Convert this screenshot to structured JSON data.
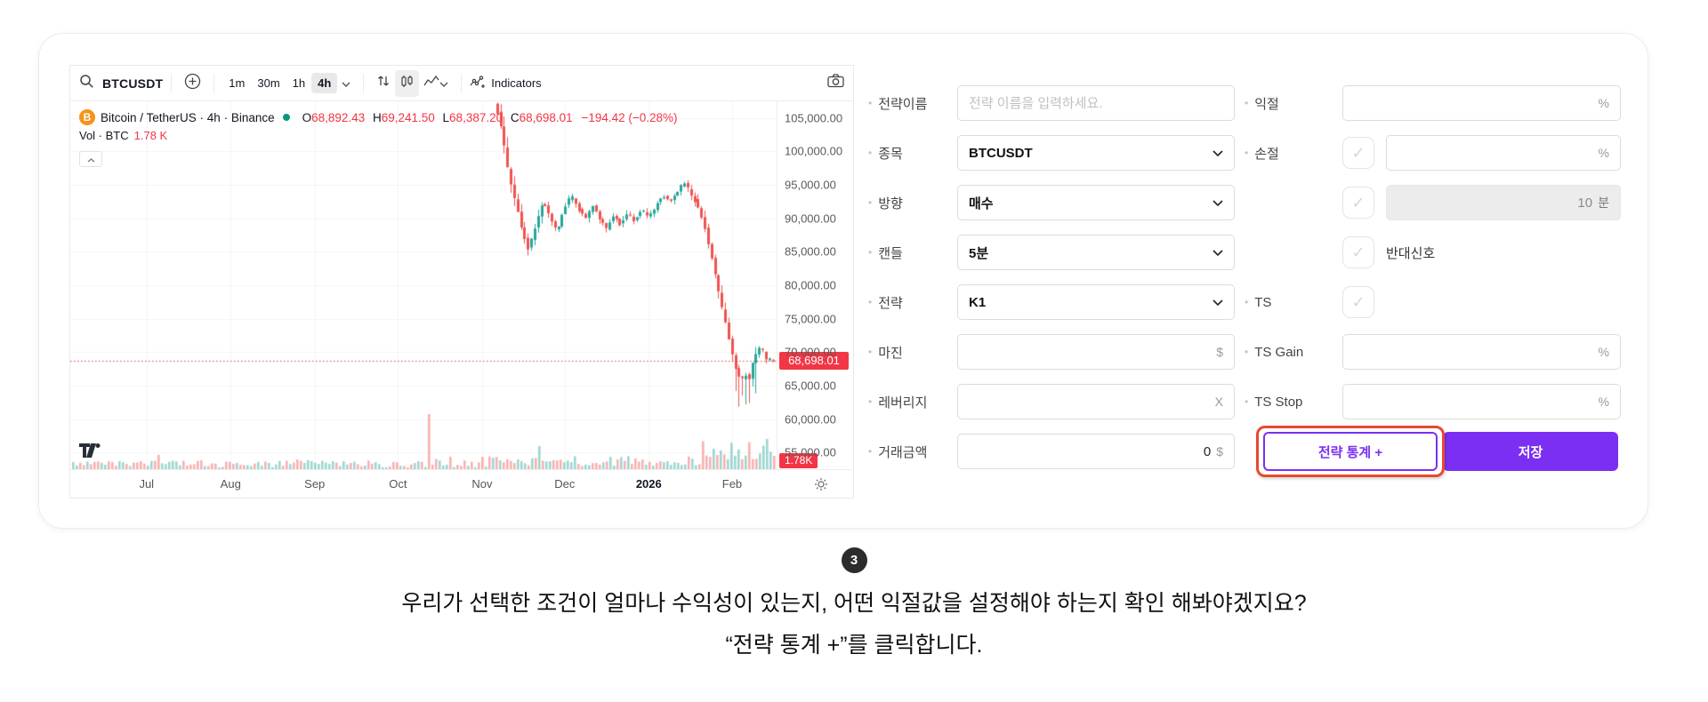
{
  "colors": {
    "accent_purple": "#7b2ff2",
    "highlight_red": "#e64a2e",
    "candle_up": "#26a69a",
    "candle_down": "#ef5350",
    "tag_red": "#f23645",
    "bitcoin_orange": "#f7931a"
  },
  "chart": {
    "toolbar": {
      "symbol": "BTCUSDT",
      "timeframes": [
        "1m",
        "30m",
        "1h",
        "4h"
      ],
      "active_timeframe": "4h",
      "indicators_label": "Indicators"
    },
    "legend": {
      "title": "Bitcoin / TetherUS · 4h · Binance",
      "ohlc": {
        "o_l": "O",
        "o": "68,892.43",
        "h_l": "H",
        "h": "69,241.50",
        "l_l": "L",
        "l": "68,387.20",
        "c_l": "C",
        "c": "68,698.01"
      },
      "change": "−194.42 (−0.28%)",
      "vol_label": "Vol · BTC",
      "vol_value": "1.78 K"
    },
    "price_axis_labels": [
      "105,000.00",
      "100,000.00",
      "95,000.00",
      "90,000.00",
      "85,000.00",
      "80,000.00",
      "75,000.00",
      "70,000.00",
      "65,000.00",
      "60,000.00",
      "55,000.00"
    ],
    "price_tag": "68,698.01",
    "volume_tag": "1.78K",
    "time_axis_labels": [
      "Jul",
      "Aug",
      "Sep",
      "Oct",
      "Nov",
      "Dec",
      "2026",
      "Feb"
    ],
    "chart_data": {
      "type": "candlestick",
      "title": "Bitcoin / TetherUS 4h Binance",
      "price_domain": [
        52500,
        107500
      ],
      "axis_prices": [
        105000,
        100000,
        95000,
        90000,
        85000,
        80000,
        75000,
        70000,
        65000,
        60000,
        55000
      ],
      "current_price": 68698.01,
      "month_fractions": [
        0.108,
        0.227,
        0.346,
        0.464,
        0.583,
        0.7,
        0.819,
        0.937
      ],
      "price_path": [
        [
          0.605,
          107000
        ],
        [
          0.615,
          102500
        ],
        [
          0.623,
          97000
        ],
        [
          0.632,
          93000
        ],
        [
          0.642,
          88500
        ],
        [
          0.652,
          85300
        ],
        [
          0.662,
          89000
        ],
        [
          0.672,
          92500
        ],
        [
          0.682,
          90500
        ],
        [
          0.692,
          88000
        ],
        [
          0.702,
          91500
        ],
        [
          0.712,
          93500
        ],
        [
          0.722,
          91500
        ],
        [
          0.732,
          90000
        ],
        [
          0.742,
          92000
        ],
        [
          0.752,
          90000
        ],
        [
          0.762,
          88500
        ],
        [
          0.772,
          90500
        ],
        [
          0.782,
          89000
        ],
        [
          0.792,
          91000
        ],
        [
          0.802,
          89500
        ],
        [
          0.812,
          91500
        ],
        [
          0.822,
          90000
        ],
        [
          0.832,
          92000
        ],
        [
          0.842,
          93500
        ],
        [
          0.852,
          92500
        ],
        [
          0.862,
          94000
        ],
        [
          0.872,
          95300
        ],
        [
          0.88,
          94000
        ],
        [
          0.888,
          92500
        ],
        [
          0.896,
          90500
        ],
        [
          0.904,
          87500
        ],
        [
          0.912,
          83500
        ],
        [
          0.92,
          79500
        ],
        [
          0.928,
          75500
        ],
        [
          0.936,
          71500
        ],
        [
          0.944,
          68000
        ],
        [
          0.952,
          65500
        ],
        [
          0.958,
          67000
        ],
        [
          0.964,
          65800
        ],
        [
          0.972,
          69500
        ],
        [
          0.98,
          71000
        ],
        [
          0.988,
          69000
        ],
        [
          1.0,
          68698
        ]
      ],
      "volume_spike_fraction": 0.505
    }
  },
  "form": {
    "left_rows": [
      {
        "label": "전략이름",
        "placeholder": "전략 이름을 입력하세요."
      },
      {
        "label": "종목",
        "value": "BTCUSDT"
      },
      {
        "label": "방향",
        "value": "매수"
      },
      {
        "label": "캔들",
        "value": "5분"
      },
      {
        "label": "전략",
        "value": "K1"
      },
      {
        "label": "마진",
        "suffix": "$"
      },
      {
        "label": "레버리지",
        "suffix": "X"
      },
      {
        "label": "거래금액",
        "value": "0",
        "suffix": "$"
      }
    ],
    "right_rows": [
      {
        "label": "익절",
        "suffix": "%"
      },
      {
        "label": "손절",
        "suffix": "%"
      },
      {
        "value": "10",
        "suffix": "분"
      },
      {
        "text": "반대신호"
      },
      {
        "label": "TS"
      },
      {
        "label": "TS Gain",
        "suffix": "%"
      },
      {
        "label": "TS Stop",
        "suffix": "%"
      }
    ],
    "stats_button_label": "전략 통계 +",
    "save_button_label": "저장"
  },
  "caption": {
    "step": "3",
    "line1": "우리가 선택한 조건이 얼마나 수익성이 있는지, 어떤 익절값을 설정해야 하는지 확인 해봐야겠지요?",
    "line2": "“전략 통계 +”를 클릭합니다."
  }
}
